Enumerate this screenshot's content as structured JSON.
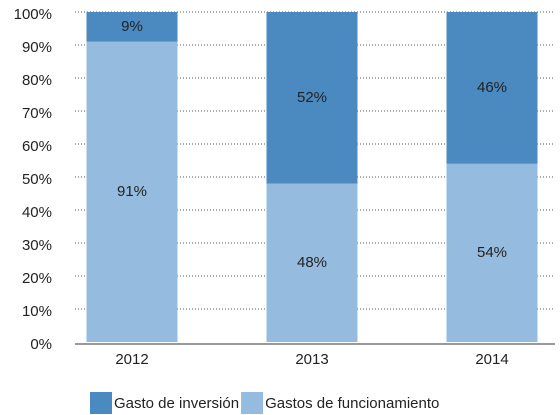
{
  "chart_data": {
    "type": "stacked-bar",
    "categories": [
      "2012",
      "2013",
      "2014"
    ],
    "series": [
      {
        "name": "Gasto de inversión",
        "color": "#4a8ac0",
        "values": [
          9,
          52,
          46
        ],
        "value_labels": [
          "9%",
          "52%",
          "46%"
        ]
      },
      {
        "name": "Gastos de funcionamiento",
        "color": "#95bcdf",
        "values": [
          91,
          48,
          54
        ],
        "value_labels": [
          "91%",
          "48%",
          "54%"
        ]
      }
    ],
    "ylim": [
      0,
      100
    ],
    "yticks": [
      {
        "value": 0,
        "label": "0%"
      },
      {
        "value": 10,
        "label": "10%"
      },
      {
        "value": 20,
        "label": "20%"
      },
      {
        "value": 30,
        "label": "30%"
      },
      {
        "value": 40,
        "label": "40%"
      },
      {
        "value": 50,
        "label": "50%"
      },
      {
        "value": 60,
        "label": "60%"
      },
      {
        "value": 70,
        "label": "70%"
      },
      {
        "value": 80,
        "label": "80%"
      },
      {
        "value": 90,
        "label": "90%"
      },
      {
        "value": 100,
        "label": "100%"
      }
    ],
    "grid": true
  }
}
